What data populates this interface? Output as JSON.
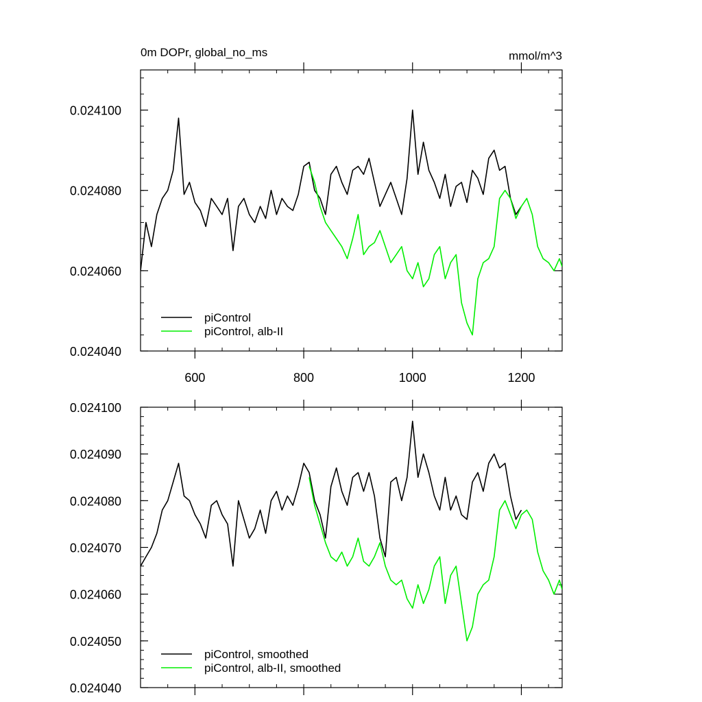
{
  "chart_data": [
    {
      "type": "line",
      "title": "0m DOPr, global_no_ms",
      "units_label": "mmol/m^3",
      "xlim": [
        500,
        1275
      ],
      "ylim": [
        0.02404,
        0.02411
      ],
      "x_ticks": [
        600,
        800,
        1000,
        1200
      ],
      "x_tick_labels": [
        "600",
        "800",
        "1000",
        "1200"
      ],
      "y_ticks": [
        0.02404,
        0.02406,
        0.02408,
        0.0241
      ],
      "y_tick_labels": [
        "0.024040",
        "0.024060",
        "0.024080",
        "0.024100"
      ],
      "legend_position": "bottom-left",
      "series": [
        {
          "name": "piControl",
          "color": "#000000",
          "x": [
            500,
            510,
            520,
            530,
            540,
            550,
            560,
            570,
            580,
            590,
            600,
            610,
            620,
            630,
            640,
            650,
            660,
            670,
            680,
            690,
            700,
            710,
            720,
            730,
            740,
            750,
            760,
            770,
            780,
            790,
            800,
            810,
            820,
            830,
            840,
            850,
            860,
            870,
            880,
            890,
            900,
            910,
            920,
            930,
            940,
            950,
            960,
            970,
            980,
            990,
            1000,
            1010,
            1020,
            1030,
            1040,
            1050,
            1060,
            1070,
            1080,
            1090,
            1100,
            1110,
            1120,
            1130,
            1140,
            1150,
            1160,
            1170,
            1180,
            1190,
            1200
          ],
          "values": [
            0.02406,
            0.024072,
            0.024066,
            0.024074,
            0.024078,
            0.02408,
            0.024085,
            0.024098,
            0.024079,
            0.024082,
            0.024077,
            0.024075,
            0.024071,
            0.024078,
            0.024076,
            0.024074,
            0.024078,
            0.024065,
            0.024076,
            0.024078,
            0.024074,
            0.024072,
            0.024076,
            0.024073,
            0.02408,
            0.024074,
            0.024078,
            0.024076,
            0.024075,
            0.024079,
            0.024086,
            0.024087,
            0.02408,
            0.024078,
            0.024074,
            0.024084,
            0.024086,
            0.024082,
            0.024079,
            0.024085,
            0.024086,
            0.024084,
            0.024088,
            0.024082,
            0.024076,
            0.024079,
            0.024082,
            0.024078,
            0.024074,
            0.024083,
            0.0241,
            0.024084,
            0.024092,
            0.024085,
            0.024082,
            0.024078,
            0.024084,
            0.024076,
            0.024081,
            0.024082,
            0.024077,
            0.024085,
            0.024083,
            0.024079,
            0.024088,
            0.02409,
            0.024085,
            0.024086,
            0.024078,
            0.024074,
            0.024076
          ]
        },
        {
          "name": "piControl, alb-II",
          "color": "#00ee00",
          "x": [
            810,
            820,
            830,
            840,
            850,
            860,
            870,
            880,
            890,
            900,
            910,
            920,
            930,
            940,
            950,
            960,
            970,
            980,
            990,
            1000,
            1010,
            1020,
            1030,
            1040,
            1050,
            1060,
            1070,
            1080,
            1090,
            1100,
            1110,
            1120,
            1130,
            1140,
            1150,
            1160,
            1170,
            1180,
            1190,
            1200,
            1210,
            1220,
            1230,
            1240,
            1250,
            1260,
            1270,
            1275
          ],
          "values": [
            0.024086,
            0.024082,
            0.024076,
            0.024072,
            0.02407,
            0.024068,
            0.024066,
            0.024063,
            0.024068,
            0.024074,
            0.024064,
            0.024066,
            0.024067,
            0.02407,
            0.024066,
            0.024062,
            0.024064,
            0.024066,
            0.02406,
            0.024058,
            0.024062,
            0.024056,
            0.024058,
            0.024064,
            0.024066,
            0.024058,
            0.024062,
            0.024064,
            0.024052,
            0.024047,
            0.024044,
            0.024058,
            0.024062,
            0.024063,
            0.024066,
            0.024078,
            0.02408,
            0.024078,
            0.024073,
            0.024076,
            0.024078,
            0.024074,
            0.024066,
            0.024063,
            0.024062,
            0.02406,
            0.024063,
            0.024061
          ]
        }
      ]
    },
    {
      "type": "line",
      "xlim": [
        500,
        1275
      ],
      "ylim": [
        0.02404,
        0.0241
      ],
      "x_ticks": [
        600,
        800,
        1000,
        1200
      ],
      "y_ticks": [
        0.02404,
        0.02405,
        0.02406,
        0.02407,
        0.02408,
        0.02409,
        0.0241
      ],
      "y_tick_labels": [
        "0.024040",
        "0.024050",
        "0.024060",
        "0.024070",
        "0.024080",
        "0.024090",
        "0.024100"
      ],
      "legend_position": "bottom-left",
      "series": [
        {
          "name": "piControl, smoothed",
          "color": "#000000",
          "x": [
            500,
            510,
            520,
            530,
            540,
            550,
            560,
            570,
            580,
            590,
            600,
            610,
            620,
            630,
            640,
            650,
            660,
            670,
            680,
            690,
            700,
            710,
            720,
            730,
            740,
            750,
            760,
            770,
            780,
            790,
            800,
            810,
            820,
            830,
            840,
            850,
            860,
            870,
            880,
            890,
            900,
            910,
            920,
            930,
            940,
            950,
            960,
            970,
            980,
            990,
            1000,
            1010,
            1020,
            1030,
            1040,
            1050,
            1060,
            1070,
            1080,
            1090,
            1100,
            1110,
            1120,
            1130,
            1140,
            1150,
            1160,
            1170,
            1180,
            1190,
            1200
          ],
          "values": [
            0.024066,
            0.024068,
            0.02407,
            0.024073,
            0.024078,
            0.02408,
            0.024084,
            0.024088,
            0.024081,
            0.02408,
            0.024077,
            0.024075,
            0.024072,
            0.024079,
            0.02408,
            0.024077,
            0.024075,
            0.024066,
            0.02408,
            0.024076,
            0.024072,
            0.024074,
            0.024078,
            0.024073,
            0.02408,
            0.024082,
            0.024078,
            0.024081,
            0.024079,
            0.024083,
            0.024088,
            0.024086,
            0.02408,
            0.024077,
            0.024072,
            0.024083,
            0.024087,
            0.024082,
            0.024079,
            0.024085,
            0.024086,
            0.024082,
            0.024086,
            0.024081,
            0.024072,
            0.024068,
            0.024084,
            0.024085,
            0.02408,
            0.024085,
            0.024097,
            0.024085,
            0.02409,
            0.024086,
            0.024081,
            0.024078,
            0.024085,
            0.024078,
            0.024081,
            0.024077,
            0.024076,
            0.024084,
            0.024086,
            0.024082,
            0.024088,
            0.02409,
            0.024087,
            0.024088,
            0.024081,
            0.024076,
            0.024078
          ]
        },
        {
          "name": "piControl, alb-II, smoothed",
          "color": "#00ee00",
          "x": [
            810,
            820,
            830,
            840,
            850,
            860,
            870,
            880,
            890,
            900,
            910,
            920,
            930,
            940,
            950,
            960,
            970,
            980,
            990,
            1000,
            1010,
            1020,
            1030,
            1040,
            1050,
            1060,
            1070,
            1080,
            1090,
            1100,
            1110,
            1120,
            1130,
            1140,
            1150,
            1160,
            1170,
            1180,
            1190,
            1200,
            1210,
            1220,
            1230,
            1240,
            1250,
            1260,
            1270,
            1275
          ],
          "values": [
            0.024085,
            0.024079,
            0.024075,
            0.024071,
            0.024068,
            0.024067,
            0.024069,
            0.024066,
            0.024068,
            0.024072,
            0.024067,
            0.024066,
            0.024068,
            0.024071,
            0.024066,
            0.024063,
            0.024062,
            0.024063,
            0.024059,
            0.024057,
            0.024062,
            0.024058,
            0.024061,
            0.024066,
            0.024068,
            0.024058,
            0.024064,
            0.024066,
            0.024058,
            0.02405,
            0.024053,
            0.02406,
            0.024062,
            0.024063,
            0.024068,
            0.024078,
            0.02408,
            0.024077,
            0.024074,
            0.024077,
            0.024078,
            0.024076,
            0.024069,
            0.024065,
            0.024063,
            0.02406,
            0.024063,
            0.024061
          ]
        }
      ]
    }
  ]
}
